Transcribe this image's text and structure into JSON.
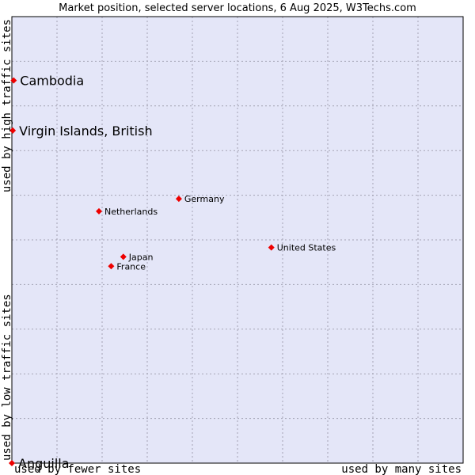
{
  "chart_data": {
    "type": "scatter",
    "title": "Market position, selected server locations, 6 Aug 2025, W3Techs.com",
    "xlabel_left": "used by fewer sites",
    "xlabel_right": "used by many sites",
    "ylabel_top": "used by high traffic sites",
    "ylabel_bottom": "used by low traffic sites",
    "xlim": [
      0,
      100
    ],
    "ylim": [
      0,
      100
    ],
    "grid": true,
    "points": [
      {
        "label": "Cambodia",
        "x": 0.4,
        "y": 85.7,
        "emphasis": true
      },
      {
        "label": "Virgin Islands, British",
        "x": 0.2,
        "y": 74.5,
        "emphasis": true
      },
      {
        "label": "Germany",
        "x": 37.0,
        "y": 59.2,
        "emphasis": false
      },
      {
        "label": "Netherlands",
        "x": 19.3,
        "y": 56.4,
        "emphasis": false
      },
      {
        "label": "United States",
        "x": 57.5,
        "y": 48.3,
        "emphasis": false
      },
      {
        "label": "Japan",
        "x": 24.7,
        "y": 46.2,
        "emphasis": false
      },
      {
        "label": "France",
        "x": 22.0,
        "y": 44.1,
        "emphasis": false
      },
      {
        "label": "Anguilla",
        "x": 0.0,
        "y": 0.0,
        "emphasis": true
      }
    ]
  },
  "colors": {
    "background": "#ffffff",
    "plot_area": "#e4e6f8",
    "grid": "#a3a3b3",
    "marker": "#ee0000"
  }
}
